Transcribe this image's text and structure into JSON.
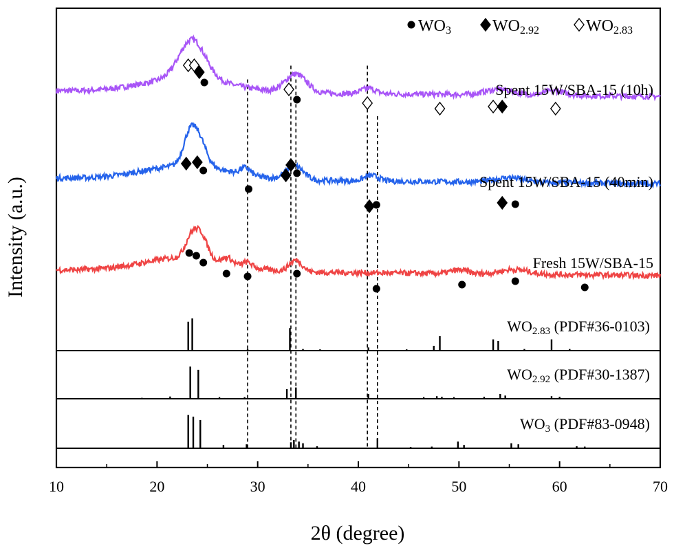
{
  "chart_data": {
    "type": "line",
    "xlabel": "2θ (degree)",
    "ylabel": "Intensity (a.u.)",
    "xlim": [
      10,
      70
    ],
    "xticks": [
      10,
      20,
      30,
      40,
      50,
      60,
      70
    ],
    "ylabel_ticks": "none",
    "grid": false,
    "legend_position": "top-right",
    "legend": [
      {
        "symbol": "circle-filled",
        "label": "WO",
        "sub": "3"
      },
      {
        "symbol": "diamond-filled",
        "label": "WO",
        "sub": "2.92"
      },
      {
        "symbol": "diamond-open",
        "label": "WO",
        "sub": "2.83"
      }
    ],
    "reference_lines_2theta": [
      29.0,
      33.3,
      33.8,
      40.9,
      41.9
    ],
    "spectra": [
      {
        "label": "Spent 15W/SBA-15 (10h)",
        "color": "#a855f7",
        "baseline_level": 0.82,
        "broad_peaks": [
          {
            "center": 23.5,
            "height": 0.085,
            "width": 1.8
          },
          {
            "center": 33.8,
            "height": 0.04,
            "width": 1.5
          },
          {
            "center": 41.0,
            "height": 0.012,
            "width": 1.0
          },
          {
            "center": 54.0,
            "height": 0.012,
            "width": 2.0
          },
          {
            "center": 59.5,
            "height": 0.01,
            "width": 1.5
          }
        ],
        "markers": [
          {
            "x": 23.1,
            "symbol": "diamond-open"
          },
          {
            "x": 23.7,
            "symbol": "diamond-open"
          },
          {
            "x": 24.2,
            "symbol": "diamond-filled"
          },
          {
            "x": 24.7,
            "symbol": "circle-filled"
          },
          {
            "x": 33.1,
            "symbol": "diamond-open"
          },
          {
            "x": 33.9,
            "symbol": "circle-filled"
          },
          {
            "x": 40.9,
            "symbol": "diamond-open"
          },
          {
            "x": 48.1,
            "symbol": "diamond-open"
          },
          {
            "x": 53.4,
            "symbol": "diamond-open"
          },
          {
            "x": 54.3,
            "symbol": "diamond-filled"
          },
          {
            "x": 59.6,
            "symbol": "diamond-open"
          }
        ]
      },
      {
        "label": "Spent 15W/SBA-15 (40min)",
        "color": "#2563eb",
        "baseline_level": 0.63,
        "broad_peaks": [
          {
            "center": 23.2,
            "height": 0.06,
            "width": 0.9
          },
          {
            "center": 24.2,
            "height": 0.055,
            "width": 1.0
          },
          {
            "center": 28.8,
            "height": 0.015,
            "width": 0.7
          },
          {
            "center": 33.7,
            "height": 0.03,
            "width": 1.2
          },
          {
            "center": 41.3,
            "height": 0.012,
            "width": 1.0
          },
          {
            "center": 55.0,
            "height": 0.01,
            "width": 2.0
          }
        ],
        "markers": [
          {
            "x": 22.9,
            "symbol": "diamond-filled"
          },
          {
            "x": 24.0,
            "symbol": "diamond-filled"
          },
          {
            "x": 24.6,
            "symbol": "circle-filled"
          },
          {
            "x": 29.1,
            "symbol": "circle-filled"
          },
          {
            "x": 32.8,
            "symbol": "diamond-filled"
          },
          {
            "x": 33.3,
            "symbol": "diamond-filled"
          },
          {
            "x": 33.9,
            "symbol": "circle-filled"
          },
          {
            "x": 41.1,
            "symbol": "diamond-filled"
          },
          {
            "x": 41.8,
            "symbol": "circle-filled"
          },
          {
            "x": 54.3,
            "symbol": "diamond-filled"
          },
          {
            "x": 55.6,
            "symbol": "circle-filled"
          }
        ]
      },
      {
        "label": "Fresh 15W/SBA-15",
        "color": "#ef4444",
        "baseline_level": 0.43,
        "broad_peaks": [
          {
            "center": 23.5,
            "height": 0.05,
            "width": 0.9
          },
          {
            "center": 24.5,
            "height": 0.04,
            "width": 0.8
          },
          {
            "center": 27.0,
            "height": 0.012,
            "width": 0.6
          },
          {
            "center": 29.0,
            "height": 0.01,
            "width": 0.6
          },
          {
            "center": 33.8,
            "height": 0.025,
            "width": 0.9
          },
          {
            "center": 50.0,
            "height": 0.008,
            "width": 1.2
          },
          {
            "center": 55.5,
            "height": 0.01,
            "width": 2.0
          }
        ],
        "markers": [
          {
            "x": 23.2,
            "symbol": "circle-filled"
          },
          {
            "x": 23.9,
            "symbol": "circle-filled"
          },
          {
            "x": 24.6,
            "symbol": "circle-filled"
          },
          {
            "x": 26.9,
            "symbol": "circle-filled"
          },
          {
            "x": 29.0,
            "symbol": "circle-filled"
          },
          {
            "x": 33.9,
            "symbol": "circle-filled"
          },
          {
            "x": 41.8,
            "symbol": "circle-filled"
          },
          {
            "x": 50.3,
            "symbol": "circle-filled"
          },
          {
            "x": 55.6,
            "symbol": "circle-filled"
          },
          {
            "x": 62.5,
            "symbol": "circle-filled"
          }
        ]
      }
    ],
    "references": [
      {
        "label_main": "WO",
        "label_sub": "2.83",
        "label_rest": " (PDF#36-0103)",
        "peaks": [
          [
            23.1,
            0.9
          ],
          [
            23.5,
            1.0
          ],
          [
            33.2,
            0.7
          ],
          [
            41.0,
            0.1
          ],
          [
            47.5,
            0.15
          ],
          [
            48.1,
            0.45
          ],
          [
            53.4,
            0.35
          ],
          [
            53.9,
            0.3
          ],
          [
            59.2,
            0.35
          ],
          [
            29.0,
            0.05
          ],
          [
            34.5,
            0.05
          ],
          [
            36.2,
            0.04
          ],
          [
            44.8,
            0.04
          ],
          [
            56.5,
            0.05
          ],
          [
            61.0,
            0.05
          ]
        ]
      },
      {
        "label_main": "WO",
        "label_sub": "2.92",
        "label_rest": " (PDF#30-1387)",
        "peaks": [
          [
            21.3,
            0.07
          ],
          [
            23.3,
            1.0
          ],
          [
            24.1,
            0.9
          ],
          [
            26.2,
            0.05
          ],
          [
            28.7,
            0.05
          ],
          [
            32.9,
            0.3
          ],
          [
            33.8,
            0.35
          ],
          [
            41.0,
            0.15
          ],
          [
            46.5,
            0.05
          ],
          [
            47.8,
            0.08
          ],
          [
            48.3,
            0.06
          ],
          [
            49.5,
            0.05
          ],
          [
            52.5,
            0.06
          ],
          [
            54.1,
            0.15
          ],
          [
            54.6,
            0.1
          ],
          [
            59.2,
            0.08
          ],
          [
            60.0,
            0.06
          ],
          [
            13.0,
            0.02
          ],
          [
            15.8,
            0.02
          ],
          [
            18.5,
            0.03
          ]
        ]
      },
      {
        "label_main": "WO",
        "label_sub": "3",
        "label_rest": " (PDF#83-0948)",
        "peaks": [
          [
            23.1,
            1.0
          ],
          [
            23.6,
            0.95
          ],
          [
            24.3,
            0.85
          ],
          [
            26.6,
            0.1
          ],
          [
            28.9,
            0.12
          ],
          [
            33.3,
            0.18
          ],
          [
            33.6,
            0.25
          ],
          [
            34.1,
            0.2
          ],
          [
            34.5,
            0.15
          ],
          [
            35.9,
            0.06
          ],
          [
            41.9,
            0.3
          ],
          [
            45.2,
            0.04
          ],
          [
            47.3,
            0.05
          ],
          [
            49.9,
            0.2
          ],
          [
            50.5,
            0.1
          ],
          [
            55.2,
            0.15
          ],
          [
            55.9,
            0.12
          ],
          [
            61.7,
            0.06
          ],
          [
            62.5,
            0.05
          ]
        ]
      }
    ]
  }
}
